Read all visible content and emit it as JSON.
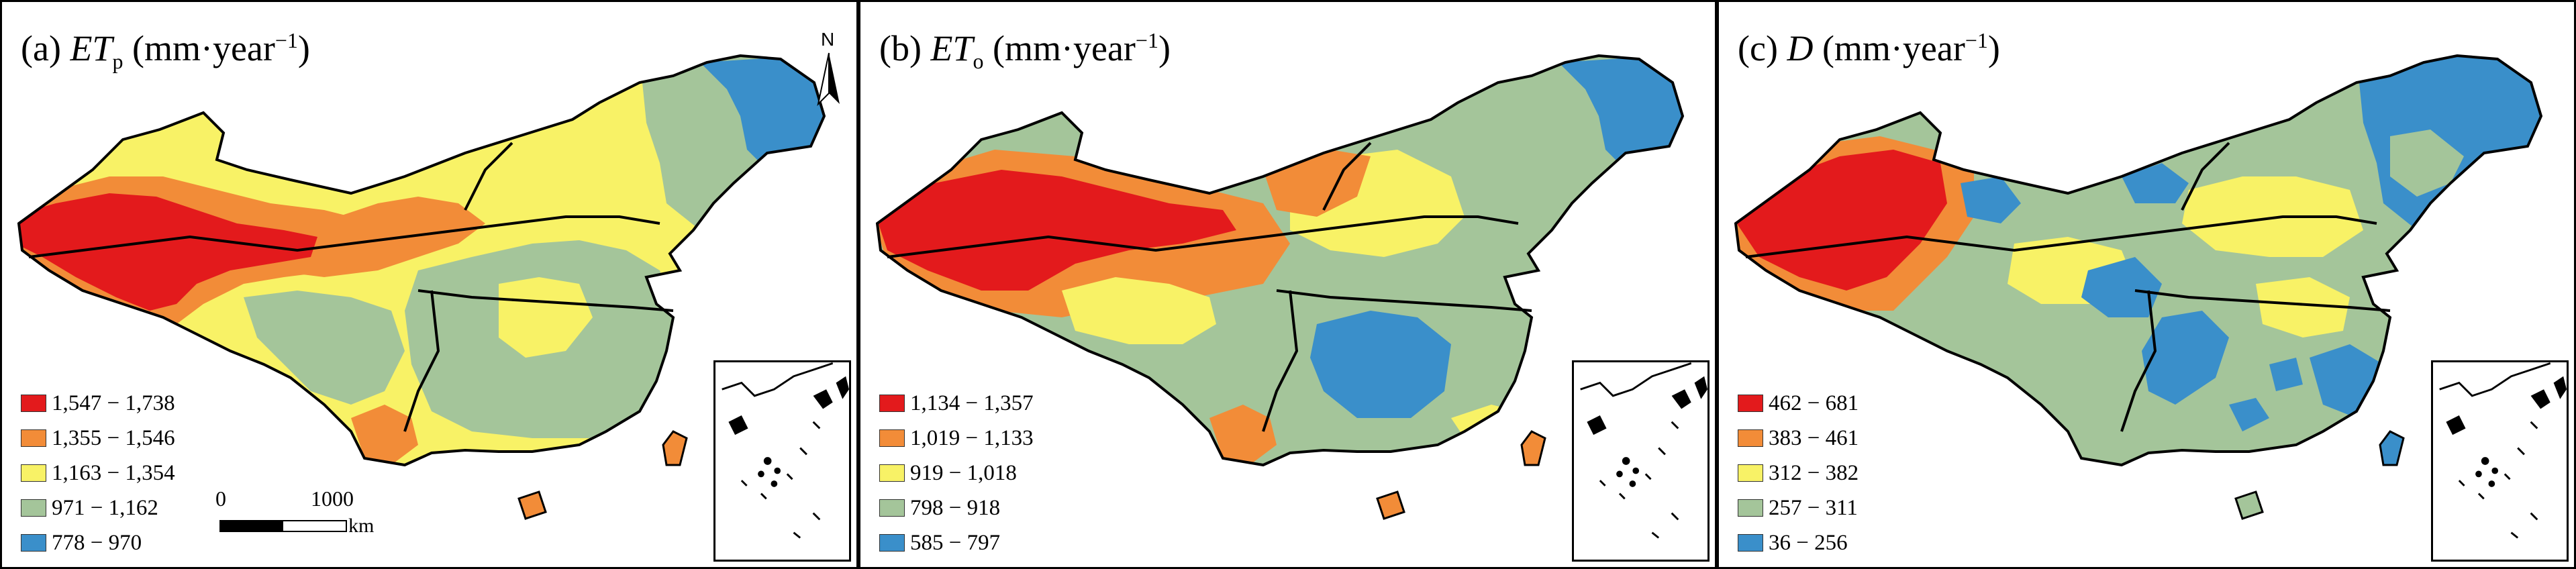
{
  "panels": [
    {
      "title_prefix": "(a) ",
      "title_symbol": "ET",
      "title_subscript": "p",
      "title_unit_pre": " (mm·year",
      "title_superscript": "−1",
      "title_unit_post": ")",
      "legend": [
        {
          "label": "1,547 − 1,738",
          "color": "#e31a1c"
        },
        {
          "label": "1,355 − 1,546",
          "color": "#f28c38"
        },
        {
          "label": "1,163 − 1,354",
          "color": "#f8f266"
        },
        {
          "label": "971 − 1,162",
          "color": "#a4c59a"
        },
        {
          "label": "778 − 970",
          "color": "#3a8fca"
        }
      ]
    },
    {
      "title_prefix": "(b) ",
      "title_symbol": "ET",
      "title_subscript": "o",
      "title_unit_pre": " (mm·year",
      "title_superscript": "−1",
      "title_unit_post": ")",
      "legend": [
        {
          "label": "1,134 − 1,357",
          "color": "#e31a1c"
        },
        {
          "label": "1,019 − 1,133",
          "color": "#f28c38"
        },
        {
          "label": "919 − 1,018",
          "color": "#f8f266"
        },
        {
          "label": "798 − 918",
          "color": "#a4c59a"
        },
        {
          "label": "585 − 797",
          "color": "#3a8fca"
        }
      ]
    },
    {
      "title_prefix": "(c) ",
      "title_symbol": "D",
      "title_subscript": "",
      "title_unit_pre": " (mm·year",
      "title_superscript": "−1",
      "title_unit_post": ")",
      "legend": [
        {
          "label": "462 − 681",
          "color": "#e31a1c"
        },
        {
          "label": "383 − 461",
          "color": "#f28c38"
        },
        {
          "label": "312 − 382",
          "color": "#f8f266"
        },
        {
          "label": "257 − 311",
          "color": "#a4c59a"
        },
        {
          "label": "36 − 256",
          "color": "#3a8fca"
        }
      ]
    }
  ],
  "scale": {
    "start": "0",
    "end": "1000",
    "unit": "km"
  },
  "north": "N",
  "colors": {
    "red": "#e31a1c",
    "orange": "#f28c38",
    "yellow": "#f8f266",
    "green": "#a4c59a",
    "blue": "#3a8fca"
  }
}
